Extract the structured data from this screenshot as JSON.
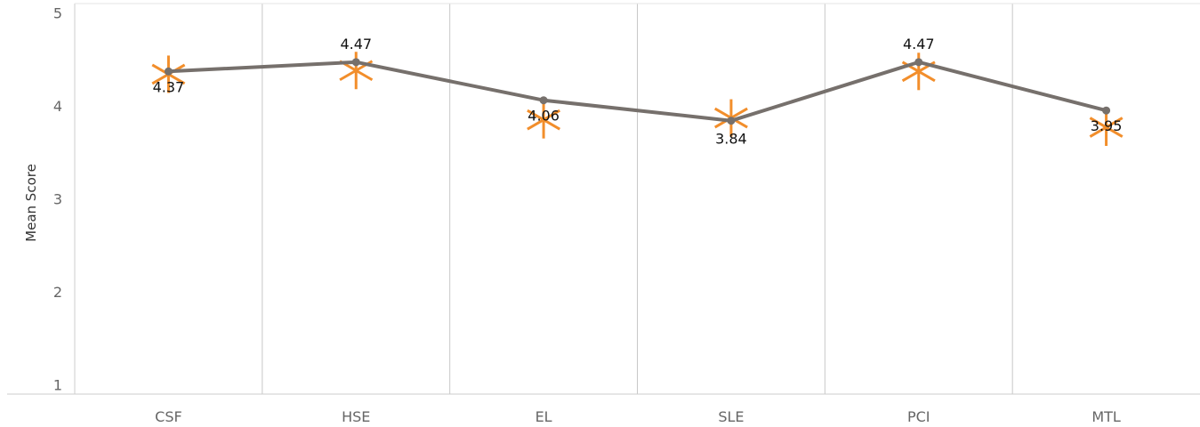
{
  "chart_data": {
    "type": "line",
    "categories": [
      "CSF",
      "HSE",
      "EL",
      "SLE",
      "PCI",
      "MTL"
    ],
    "ylabel": "Mean Score",
    "xlabel": "",
    "ylim": [
      0.9,
      5.1
    ],
    "yticks": [
      1,
      2,
      3,
      4,
      5
    ],
    "series": [
      {
        "values": [
          4.37,
          4.47,
          4.06,
          3.84,
          4.47,
          3.95
        ],
        "labels": [
          "4.37",
          "4.47",
          "4.06",
          "3.84",
          "4.47",
          "3.95"
        ],
        "color": "#76706C",
        "marker": "dot"
      },
      {
        "values": [
          4.34,
          4.38,
          3.85,
          3.87,
          4.37,
          3.77
        ],
        "color": "#F28E2B",
        "marker": "asterisk"
      }
    ],
    "grid": {
      "vertical": true,
      "horizontal": false
    },
    "colors": {
      "axis": "#cccccc",
      "grid": "#c8c8c8",
      "line": "#76706C",
      "asterisk": "#F28E2B"
    }
  }
}
